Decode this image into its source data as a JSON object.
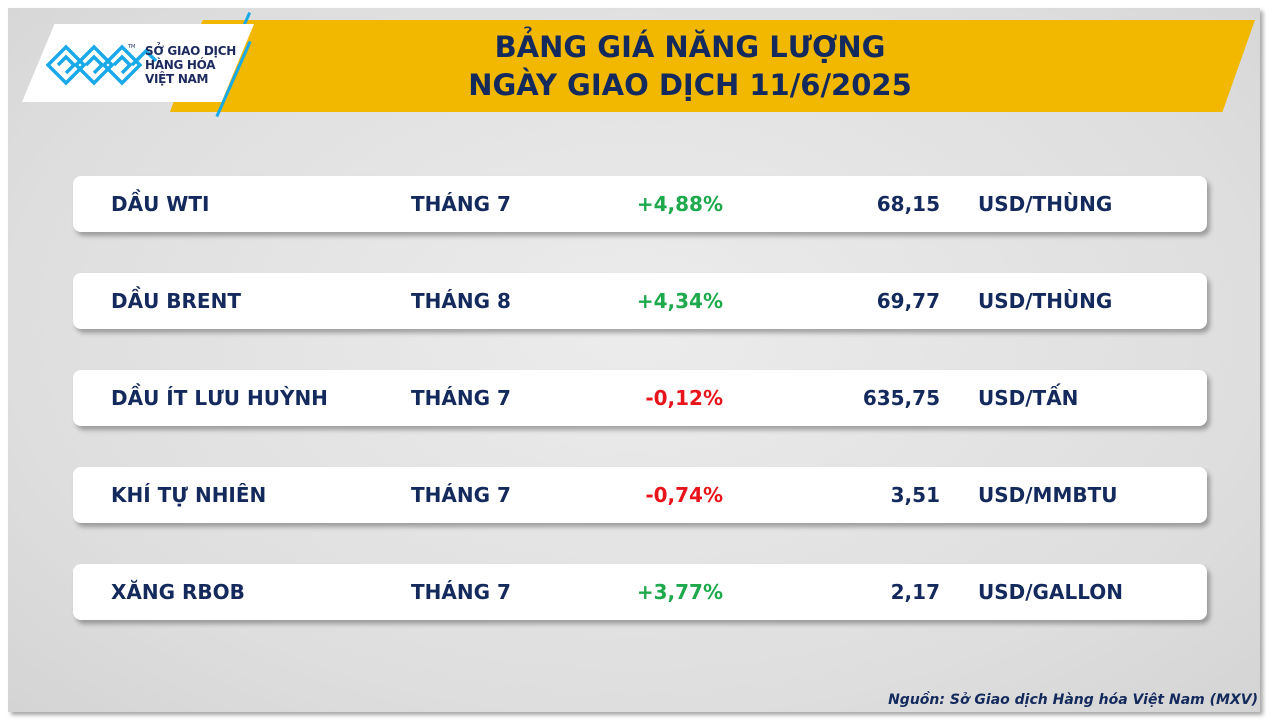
{
  "logo": {
    "text": [
      "SỞ GIAO DỊCH",
      "HÀNG HÓA",
      "VIỆT NAM"
    ],
    "tm": "TM",
    "brand_color": "#19a9e8"
  },
  "header": {
    "line1": "BẢNG GIÁ NĂNG LƯỢNG",
    "line2": "NGÀY GIAO DỊCH 11/6/2025",
    "banner_color": "#f2b800"
  },
  "rows": [
    {
      "name": "DẦU WTI",
      "month": "THÁNG 7",
      "change": "+4,88%",
      "direction": "up",
      "price": "68,15",
      "unit": "USD/THÙNG"
    },
    {
      "name": "DẦU BRENT",
      "month": "THÁNG 8",
      "change": "+4,34%",
      "direction": "up",
      "price": "69,77",
      "unit": "USD/THÙNG"
    },
    {
      "name": "DẦU ÍT LƯU HUỲNH",
      "month": "THÁNG 7",
      "change": "-0,12%",
      "direction": "down",
      "price": "635,75",
      "unit": "USD/TẤN"
    },
    {
      "name": "KHÍ TỰ NHIÊN",
      "month": "THÁNG 7",
      "change": "-0,74%",
      "direction": "down",
      "price": "3,51",
      "unit": "USD/MMBTU"
    },
    {
      "name": "XĂNG RBOB",
      "month": "THÁNG 7",
      "change": "+3,77%",
      "direction": "up",
      "price": "2,17",
      "unit": "USD/GALLON"
    }
  ],
  "colors": {
    "up": "#1ea94c",
    "down": "#e8141c",
    "text": "#142a5c"
  },
  "source": "Nguồn: Sở Giao dịch Hàng hóa Việt Nam (MXV)"
}
